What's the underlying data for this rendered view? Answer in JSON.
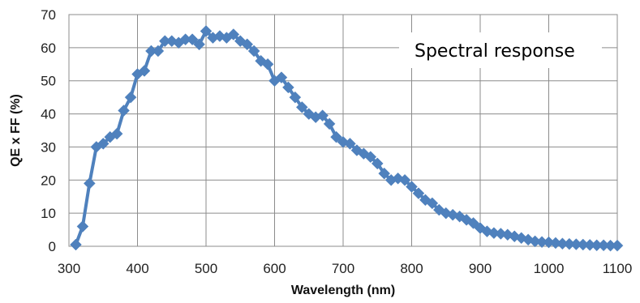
{
  "chart_data": {
    "type": "line",
    "title": "",
    "annotation": "Spectral response",
    "xlabel": "Wavelength (nm)",
    "ylabel": "QE x FF (%)",
    "xlim": [
      300,
      1100
    ],
    "ylim": [
      0,
      70
    ],
    "xticks": [
      300,
      400,
      500,
      600,
      700,
      800,
      900,
      1000,
      1100
    ],
    "yticks": [
      0,
      10,
      20,
      30,
      40,
      50,
      60,
      70
    ],
    "grid": true,
    "legend": "none",
    "series": [
      {
        "color": "#4f81bd",
        "marker": "diamond",
        "x": [
          310,
          320,
          330,
          340,
          350,
          360,
          370,
          380,
          390,
          400,
          410,
          420,
          430,
          440,
          450,
          460,
          470,
          480,
          490,
          500,
          510,
          520,
          530,
          540,
          550,
          560,
          570,
          580,
          590,
          600,
          610,
          620,
          630,
          640,
          650,
          660,
          670,
          680,
          690,
          700,
          710,
          720,
          730,
          740,
          750,
          760,
          770,
          780,
          790,
          800,
          810,
          820,
          830,
          840,
          850,
          860,
          870,
          880,
          890,
          900,
          910,
          920,
          930,
          940,
          950,
          960,
          970,
          980,
          990,
          1000,
          1010,
          1020,
          1030,
          1040,
          1050,
          1060,
          1070,
          1080,
          1090,
          1100
        ],
        "y": [
          0.5,
          6,
          19,
          30,
          31,
          33,
          34,
          41,
          45,
          52,
          53,
          59,
          59,
          62,
          62,
          61.5,
          62.5,
          62.5,
          61,
          65,
          63,
          63.5,
          63,
          64,
          62,
          61,
          59,
          56,
          55,
          50,
          51,
          48,
          45,
          42,
          40,
          39,
          39.5,
          37,
          33,
          31.5,
          31,
          29,
          28,
          27,
          25,
          22,
          20,
          20.5,
          20,
          18,
          16,
          14,
          13,
          11,
          10,
          9.5,
          9,
          8,
          7,
          5.5,
          4.5,
          4,
          3.8,
          3.5,
          3,
          2.5,
          2,
          1.5,
          1.3,
          1.2,
          1,
          0.8,
          0.7,
          0.6,
          0.5,
          0.4,
          0.3,
          0.3,
          0.2,
          0.2
        ]
      }
    ]
  }
}
